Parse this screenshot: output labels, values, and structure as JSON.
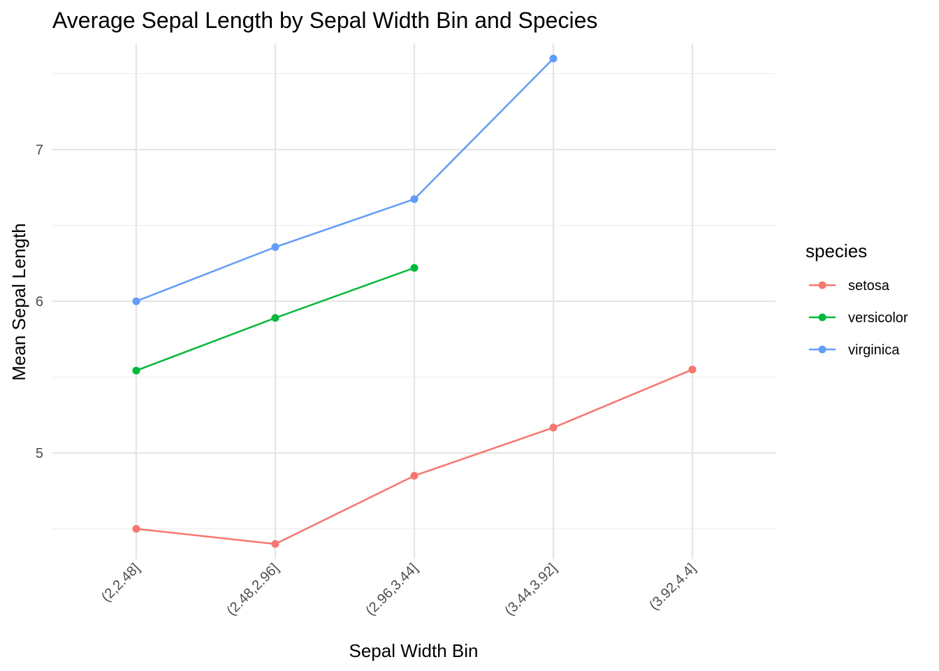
{
  "chart_data": {
    "type": "line",
    "title": "Average Sepal Length by Sepal Width Bin and Species",
    "xlabel": "Sepal Width Bin",
    "ylabel": "Mean Sepal Length",
    "categories": [
      "(2,2.48]",
      "(2.48,2.96]",
      "(2.96,3.44]",
      "(3.44,3.92]",
      "(3.92,4.4]"
    ],
    "y_ticks": [
      5,
      6,
      7
    ],
    "y_tick_labels": [
      "5",
      "6",
      "7"
    ],
    "ylim": [
      4.3,
      7.7
    ],
    "grid": true,
    "legend_title": "species",
    "legend_position": "right",
    "series": [
      {
        "name": "setosa",
        "color": "#F8766D",
        "values": [
          4.5,
          4.4,
          4.85,
          5.167,
          5.55
        ]
      },
      {
        "name": "versicolor",
        "color": "#00BA38",
        "values": [
          5.543,
          5.89,
          6.22,
          null,
          null
        ]
      },
      {
        "name": "virginica",
        "color": "#619CFF",
        "values": [
          6.0,
          6.357,
          6.673,
          7.6,
          null
        ]
      }
    ]
  }
}
